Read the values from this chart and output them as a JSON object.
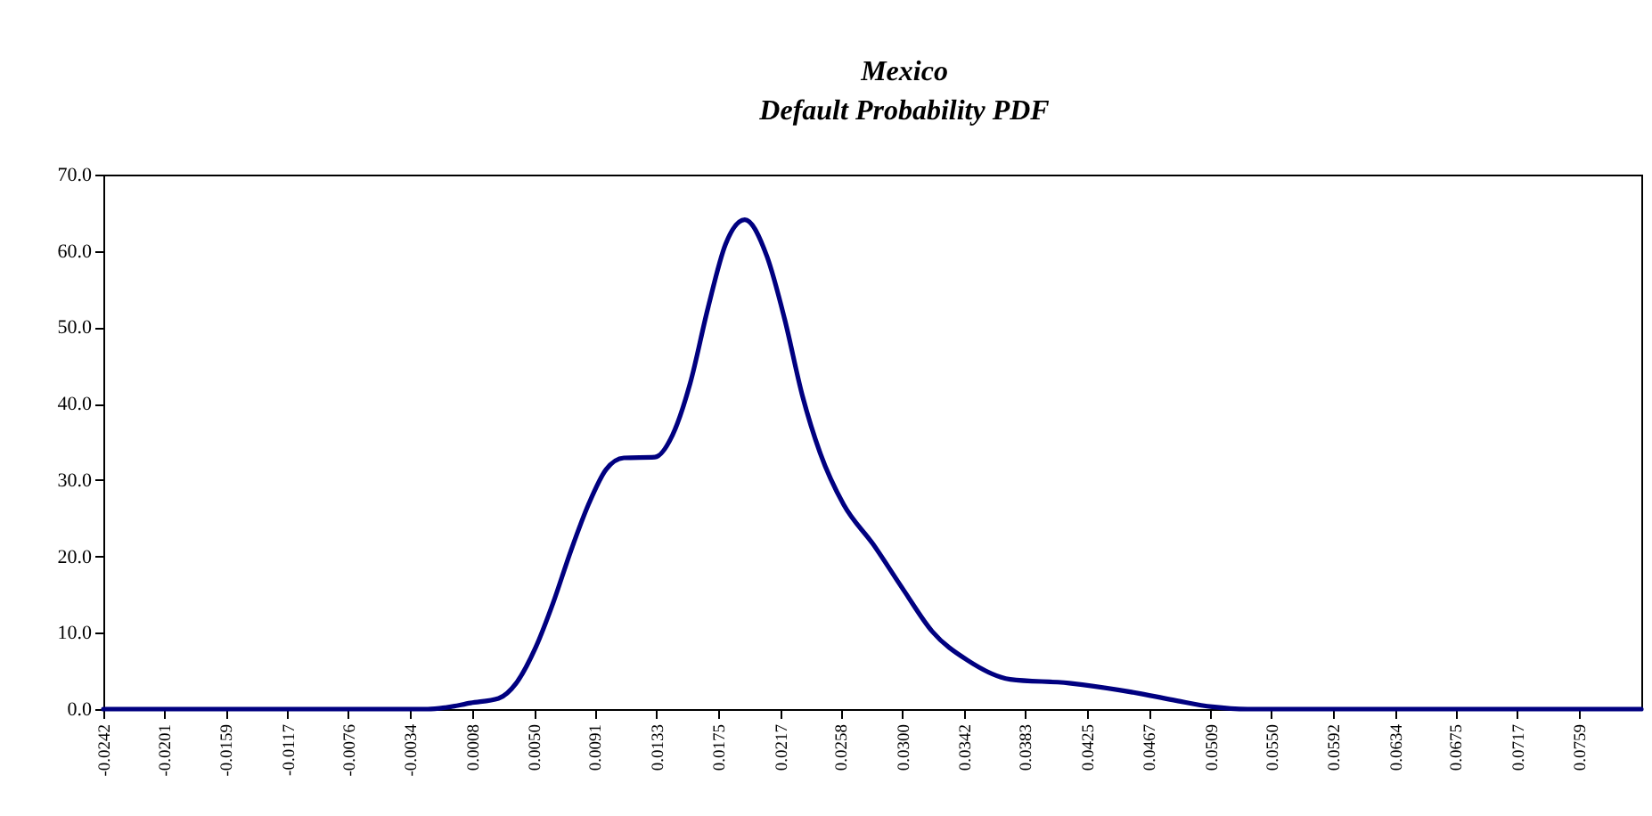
{
  "chart_data": {
    "type": "line",
    "title": "Mexico",
    "subtitle": "Default Probability PDF",
    "x": [
      -0.0242,
      -0.0022,
      -0.001,
      0.0007,
      0.0026,
      0.0038,
      0.0051,
      0.0063,
      0.0075,
      0.0087,
      0.0099,
      0.0111,
      0.0132,
      0.0144,
      0.0156,
      0.0168,
      0.018,
      0.0193,
      0.0208,
      0.022,
      0.0232,
      0.0244,
      0.026,
      0.028,
      0.0301,
      0.032,
      0.0344,
      0.0373,
      0.0413,
      0.0422,
      0.0462,
      0.0486,
      0.051,
      0.0534,
      0.0801
    ],
    "series": [
      {
        "color": "#000080",
        "values": [
          0,
          0,
          0.2,
          0.8,
          1.4,
          3.4,
          8.0,
          13.9,
          20.7,
          26.8,
          31.4,
          32.9,
          33.0,
          35.9,
          42.7,
          52.5,
          60.9,
          64.1,
          59.3,
          51.1,
          41.1,
          33.6,
          26.8,
          21.6,
          15.5,
          10.2,
          6.4,
          3.9,
          3.4,
          3.2,
          2.0,
          1.1,
          0.3,
          0,
          0
        ]
      }
    ],
    "xlim": [
      -0.0242,
      0.0801
    ],
    "xticks": [
      -0.0242,
      -0.0201,
      -0.0159,
      -0.0117,
      -0.0076,
      -0.0034,
      0.0008,
      {
        "value": 0.005,
        "label": "0.0050"
      },
      0.0091,
      0.0133,
      0.0175,
      0.0217,
      0.0258,
      {
        "value": 0.03,
        "label": "0.0300"
      },
      0.0342,
      0.0383,
      0.0425,
      0.0467,
      0.0509,
      {
        "value": 0.055,
        "label": "0.0550"
      },
      0.0592,
      0.0634,
      0.0675,
      0.0717,
      0.0759
    ],
    "ylim": [
      0,
      70
    ],
    "yticks": [
      {
        "value": 0,
        "label": "0.0"
      },
      {
        "value": 10,
        "label": "10.0"
      },
      {
        "value": 20,
        "label": "20.0"
      },
      {
        "value": 30,
        "label": "30.0"
      },
      {
        "value": 40,
        "label": "40.0"
      },
      {
        "value": 50,
        "label": "50.0"
      },
      {
        "value": 60,
        "label": "60.0"
      },
      {
        "value": 70,
        "label": "70.0"
      }
    ],
    "grid": false,
    "marker": "none",
    "line_style": "solid"
  }
}
